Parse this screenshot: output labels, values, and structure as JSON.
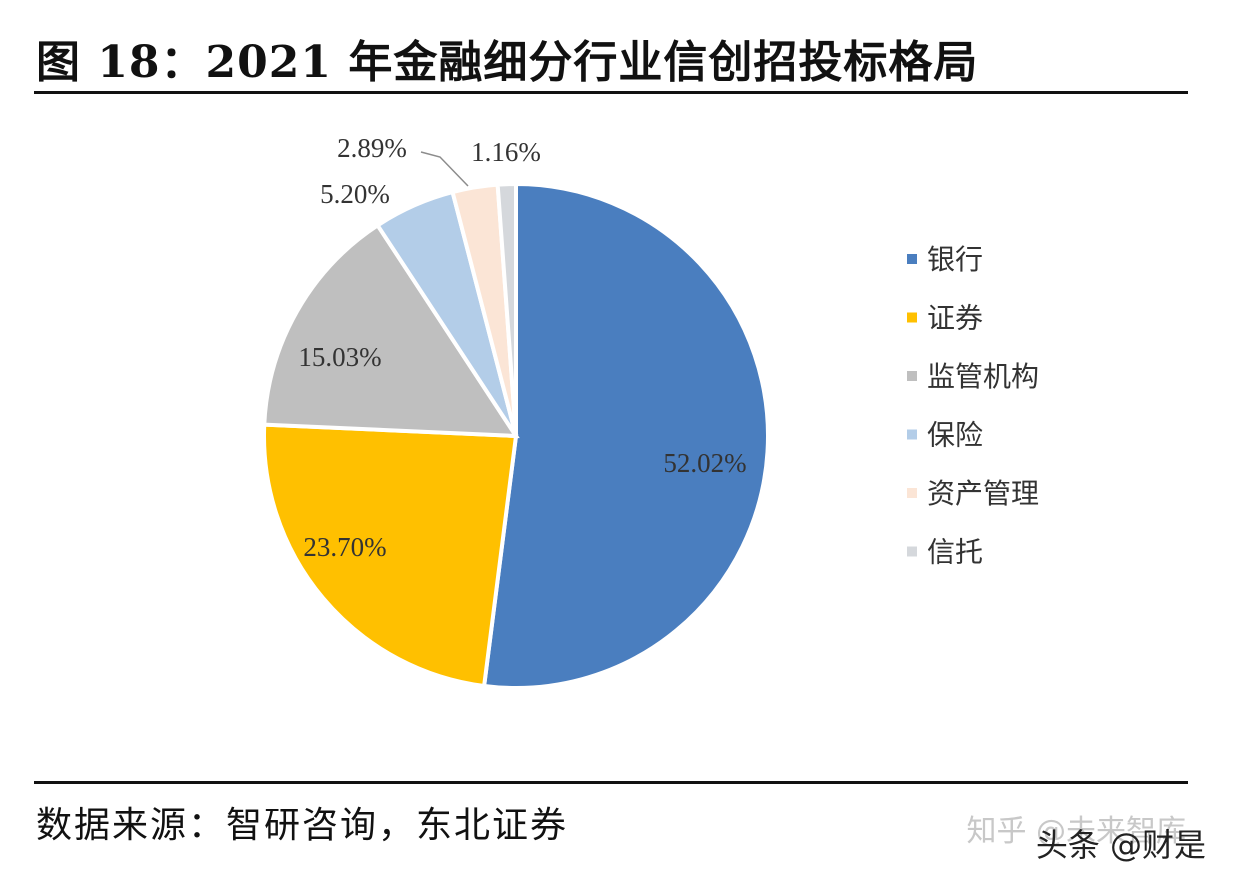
{
  "figure": {
    "title": "图 18：2021 年金融细分行业信创招投标格局",
    "source": "数据来源：智研咨询，东北证券",
    "watermark_primary": "知乎 @未来智库",
    "watermark_secondary": "头条 @财是"
  },
  "chart_data": {
    "type": "pie",
    "categories": [
      "银行",
      "证券",
      "监管机构",
      "保险",
      "资产管理",
      "信托"
    ],
    "values": [
      52.02,
      23.7,
      15.03,
      5.2,
      2.89,
      1.16
    ],
    "labels": [
      "52.02%",
      "23.70%",
      "15.03%",
      "5.20%",
      "2.89%",
      "1.16%"
    ],
    "colors": [
      "#4a7ebf",
      "#ffc000",
      "#bfbfbf",
      "#b3cde8",
      "#fbe5d6",
      "#d5d8dc"
    ],
    "legend_position": "right",
    "start_angle": "12 o'clock",
    "direction": "clockwise"
  }
}
